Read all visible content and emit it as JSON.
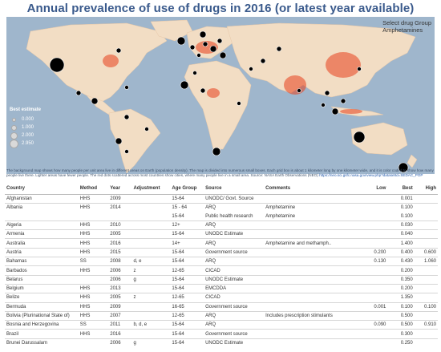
{
  "title": "Annual prevalence of use of drugs in 2016 (or latest year available)",
  "selector": {
    "label": "Select drug Group",
    "value": "Amphetamines"
  },
  "legend": {
    "title": "Best estimate",
    "items": [
      "0.000",
      "1.000",
      "2.000",
      "2.950"
    ]
  },
  "map_note": "The background map shows how many people per unit area live in different areas on Earth (population density). The map is divided into numerous small boxes. Each grid box is about 1 kilometer long by one kilometer wide, and it is color coded to show how many people live there. Lighter areas have fewer people. The red dots scattered across most countries show cities, where many people live in a small area. Source: NASA Earth Observations (NEO)",
  "map_link": "https://neo.sci.gsfc.nasa.gov/view.php?datasetId=SEDAC_POP",
  "colors": {
    "title": "#3a5a8c",
    "ocean": "#9fb6cc",
    "land": "#f2ddc4",
    "dense": "#e8401c",
    "bubble": "#000000"
  },
  "table": {
    "headers": [
      "Country",
      "Method",
      "Year",
      "Adjustment",
      "Age Group",
      "Source",
      "Comments",
      "Low",
      "Best",
      "High"
    ],
    "rows": [
      [
        "Afghanistan",
        "HHS",
        "2009",
        "",
        "15-64",
        "UNODC/ Govt. Source",
        "",
        "",
        "0.001",
        ""
      ],
      [
        "Albania",
        "HHS",
        "2014",
        "",
        "15 - 64",
        "ARQ",
        "Amphetamine",
        "",
        "0.100",
        ""
      ],
      [
        "",
        "",
        "",
        "",
        "15-64",
        "Public health research",
        "Amphetamine",
        "",
        "0.100",
        ""
      ],
      [
        "Algeria",
        "HHS",
        "2010",
        "",
        "12+",
        "ARQ",
        "",
        "",
        "0.030",
        ""
      ],
      [
        "Armenia",
        "HHS",
        "2005",
        "",
        "15-64",
        "UNODC Estimate",
        "",
        "",
        "0.040",
        ""
      ],
      [
        "Australia",
        "HHS",
        "2016",
        "",
        "14+",
        "ARQ",
        "Amphetamine and methamph..",
        "",
        "1.400",
        ""
      ],
      [
        "Austria",
        "HHS",
        "2015",
        "",
        "15-64",
        "Government source",
        "",
        "0.200",
        "0.400",
        "0.600"
      ],
      [
        "Bahamas",
        "SS",
        "2008",
        "d, e",
        "15-64",
        "ARQ",
        "",
        "0.130",
        "0.430",
        "1.060"
      ],
      [
        "Barbados",
        "HHS",
        "2006",
        "z",
        "12-65",
        "CICAD",
        "",
        "",
        "0.200",
        ""
      ],
      [
        "Belarus",
        "",
        "2006",
        "g",
        "15-64",
        "UNODC Estimate",
        "",
        "",
        "0.350",
        ""
      ],
      [
        "Belgium",
        "HHS",
        "2013",
        "",
        "15-64",
        "EMCDDA",
        "",
        "",
        "0.200",
        ""
      ],
      [
        "Belize",
        "HHS",
        "2005",
        "z",
        "12-65",
        "CICAD",
        "",
        "",
        "1.350",
        ""
      ],
      [
        "Bermuda",
        "HHS",
        "2009",
        "",
        "16-65",
        "Government source",
        "",
        "0.001",
        "0.100",
        "0.100"
      ],
      [
        "Bolivia (Plurinational State of)",
        "HHS",
        "2007",
        "",
        "12-65",
        "ARQ",
        "Includes prescription stimulants",
        "",
        "0.500",
        ""
      ],
      [
        "Bosnia and Herzegovina",
        "SS",
        "2011",
        "b, d, e",
        "15-64",
        "ARQ",
        "",
        "0.090",
        "0.500",
        "0.910"
      ],
      [
        "Brazil",
        "HHS",
        "2016",
        "",
        "15-64",
        "Government source",
        "",
        "",
        "0.300",
        ""
      ],
      [
        "Brunei Darussalam",
        "",
        "2006",
        "g",
        "15-64",
        "UNODC Estimate",
        "",
        "",
        "0.250",
        ""
      ]
    ]
  }
}
